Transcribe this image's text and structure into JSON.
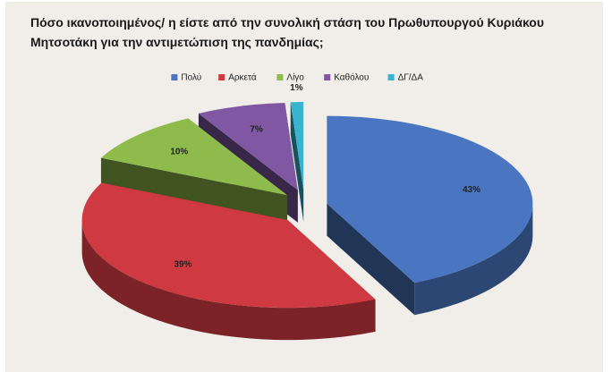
{
  "chart_data": {
    "type": "pie3d",
    "title": "Πόσο ικανοποιημένος/ η είστε από την συνολική στάση του Πρωθυπουργού Κυριάκου Μητσοτάκη για την αντιμετώπιση της πανδημίας;",
    "categories": [
      "Πολύ",
      "Αρκετά",
      "Λίγο",
      "Καθόλου",
      "ΔΓ/ΔΑ"
    ],
    "values": [
      43,
      39,
      10,
      7,
      1
    ],
    "value_labels": [
      "43%",
      "39%",
      "10%",
      "7%",
      "1%"
    ],
    "colors": [
      "#4a76c1",
      "#cf3a42",
      "#8fbb4c",
      "#7f57a2",
      "#3ab3cf"
    ],
    "legend": "top"
  }
}
